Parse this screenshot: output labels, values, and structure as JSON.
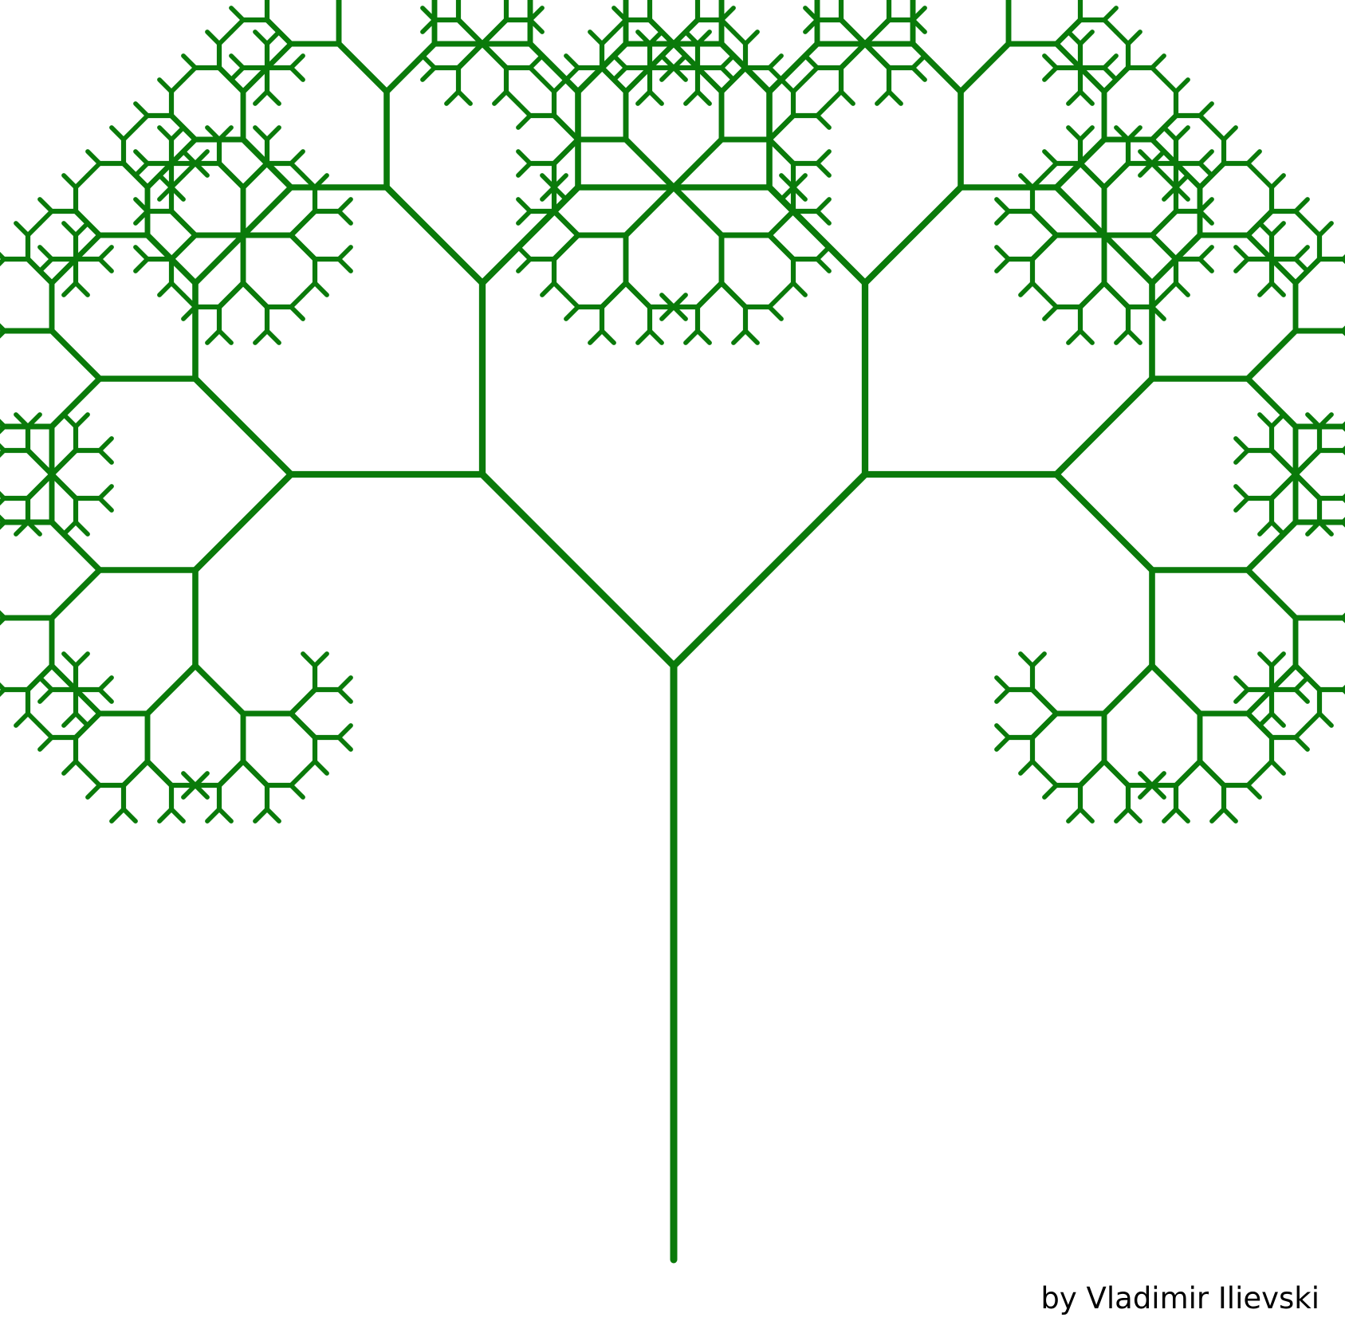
{
  "figure": {
    "description_type": "fractal-tree",
    "stroke_color": "#0a7a0a",
    "background_color": "#ffffff",
    "recursion_depth": 9
  },
  "credit": {
    "text": "by Vladimir Ilievski"
  }
}
